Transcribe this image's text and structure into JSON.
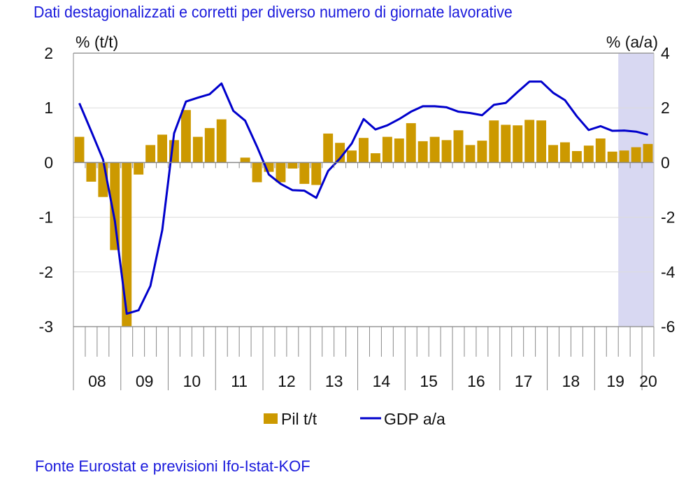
{
  "chart_data": {
    "type": "bar+line",
    "title": "Dati destagionalizzati e corretti per diverso numero di giornate lavorative",
    "source": "Fonte Eurostat e previsioni Ifo-Istat-KOF",
    "left_axis": {
      "label": "% (t/t)",
      "ylim": [
        -3,
        2
      ],
      "ticks": [
        "2",
        "1",
        "0",
        "-1",
        "-2",
        "-3"
      ],
      "tick_values": [
        2,
        1,
        0,
        -1,
        -2,
        -3
      ]
    },
    "right_axis": {
      "label": "% (a/a)",
      "ylim": [
        -6,
        4
      ],
      "ticks": [
        "4",
        "2",
        "0",
        "-2",
        "-4",
        "-6"
      ],
      "tick_values": [
        4,
        2,
        0,
        -2,
        -4,
        -6
      ]
    },
    "x_year_labels": [
      "08",
      "09",
      "10",
      "11",
      "12",
      "13",
      "14",
      "15",
      "16",
      "17",
      "18",
      "19",
      "20"
    ],
    "quarters_start": "2008Q1",
    "quarters_end": "2020Q1",
    "forecast_shaded_quarters": [
      "2019Q3",
      "2019Q4",
      "2020Q1"
    ],
    "forecast_shade_color": "#d8d8f2",
    "grid": true,
    "legend_position": "bottom",
    "series": [
      {
        "name": "Pil t/t",
        "type": "bar",
        "axis": "left",
        "color": "#cc9900",
        "values": [
          0.47,
          -0.35,
          -0.63,
          -1.6,
          -3.0,
          -0.22,
          0.32,
          0.51,
          0.41,
          0.96,
          0.47,
          0.63,
          0.79,
          0.0,
          0.09,
          -0.36,
          -0.17,
          -0.36,
          -0.11,
          -0.39,
          -0.41,
          0.53,
          0.36,
          0.22,
          0.45,
          0.17,
          0.47,
          0.44,
          0.72,
          0.39,
          0.47,
          0.41,
          0.59,
          0.32,
          0.4,
          0.77,
          0.69,
          0.68,
          0.78,
          0.77,
          0.32,
          0.37,
          0.21,
          0.31,
          0.44,
          0.2,
          0.22,
          0.28,
          0.34
        ]
      },
      {
        "name": "GDP a/a",
        "type": "line",
        "axis": "right",
        "color": "#0000cc",
        "values": [
          2.17,
          1.15,
          0.11,
          -2.14,
          -5.53,
          -5.4,
          -4.51,
          -2.47,
          1.07,
          2.23,
          2.37,
          2.5,
          2.89,
          1.89,
          1.53,
          0.58,
          -0.44,
          -0.78,
          -1.01,
          -1.03,
          -1.29,
          -0.31,
          0.15,
          0.7,
          1.59,
          1.21,
          1.36,
          1.59,
          1.86,
          2.06,
          2.06,
          2.02,
          1.86,
          1.81,
          1.73,
          2.11,
          2.18,
          2.58,
          2.96,
          2.96,
          2.55,
          2.28,
          1.69,
          1.19,
          1.33,
          1.16,
          1.17,
          1.13,
          1.02
        ]
      }
    ]
  }
}
